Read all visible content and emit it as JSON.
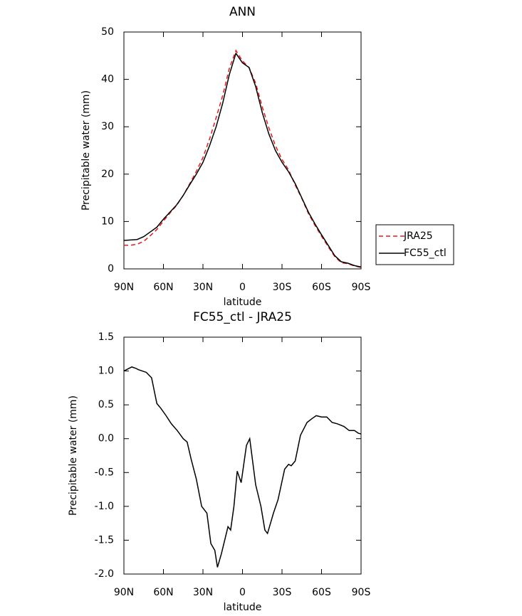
{
  "chart_data": [
    {
      "type": "line",
      "title": "ANN",
      "xlabel": "latitude",
      "ylabel": "Precipitable water (mm)",
      "xlim": [
        90,
        -90
      ],
      "xticks": [
        {
          "value": 90,
          "label": "90N"
        },
        {
          "value": 60,
          "label": "60N"
        },
        {
          "value": 30,
          "label": "30N"
        },
        0,
        {
          "value": -30,
          "label": "30S"
        },
        {
          "value": -60,
          "label": "60S"
        },
        {
          "value": -90,
          "label": "90S"
        }
      ],
      "ylim": [
        0,
        50
      ],
      "yticks": [
        0,
        10,
        20,
        30,
        40,
        50
      ],
      "legend": "outside-right",
      "x": [
        90,
        85,
        80,
        75,
        70,
        65,
        60,
        55,
        50,
        45,
        40,
        35,
        30,
        25,
        20,
        15,
        10,
        5,
        0,
        -5,
        -10,
        -15,
        -20,
        -25,
        -30,
        -35,
        -40,
        -45,
        -50,
        -55,
        -60,
        -65,
        -70,
        -75,
        -80,
        -85,
        -90
      ],
      "series": [
        {
          "name": "JRA25",
          "color": "#e8191c",
          "dashed": true,
          "values": [
            5.0,
            5.0,
            5.2,
            5.8,
            7.0,
            8.3,
            10.1,
            11.8,
            13.4,
            15.5,
            18.0,
            20.6,
            23.5,
            27.4,
            31.9,
            36.6,
            42.3,
            46.1,
            43.9,
            42.5,
            39.2,
            34.2,
            29.8,
            26.0,
            23.1,
            20.9,
            17.7,
            14.9,
            11.7,
            9.2,
            6.9,
            4.7,
            2.6,
            1.3,
            1.1,
            0.6,
            0.3
          ]
        },
        {
          "name": "FC55_ctl",
          "color": "#000000",
          "dashed": false,
          "values": [
            6.0,
            6.1,
            6.2,
            6.8,
            7.8,
            8.8,
            10.5,
            12.0,
            13.5,
            15.5,
            17.8,
            20.0,
            22.5,
            26.0,
            30.0,
            35.0,
            41.0,
            45.5,
            43.5,
            42.5,
            38.5,
            33.0,
            28.5,
            25.0,
            22.5,
            20.5,
            18.0,
            15.0,
            12.0,
            9.5,
            7.2,
            5.0,
            2.8,
            1.5,
            1.2,
            0.7,
            0.4
          ]
        }
      ]
    },
    {
      "type": "line",
      "title": "FC55_ctl - JRA25",
      "xlabel": "latitude",
      "ylabel": "Precipitable water (mm)",
      "xlim": [
        90,
        -90
      ],
      "xticks": [
        {
          "value": 90,
          "label": "90N"
        },
        {
          "value": 60,
          "label": "60N"
        },
        {
          "value": 30,
          "label": "30N"
        },
        0,
        {
          "value": -30,
          "label": "30S"
        },
        {
          "value": -60,
          "label": "60S"
        },
        {
          "value": -90,
          "label": "90S"
        }
      ],
      "ylim": [
        -2.0,
        1.5
      ],
      "yticks": [
        {
          "value": -2.0,
          "label": "-2.0"
        },
        -1.5,
        {
          "value": -1.0,
          "label": "-1.0"
        },
        -0.5,
        {
          "value": 0.0,
          "label": "0.0"
        },
        0.5,
        {
          "value": 1.0,
          "label": "1.0"
        },
        1.5
      ],
      "x": [
        90,
        84,
        81,
        79,
        73,
        69,
        65,
        62,
        58,
        54,
        49.5,
        45,
        42,
        39,
        35,
        31,
        27,
        24,
        21,
        19,
        16,
        11,
        9,
        6.5,
        4,
        1,
        -3,
        -5.5,
        -10,
        -14,
        -17,
        -19,
        -23.5,
        -27,
        -32,
        -35,
        -37,
        -40,
        -44,
        -49,
        -53,
        -56,
        -60,
        -64,
        -68,
        -72,
        -77,
        -81,
        -85,
        -88,
        -90
      ],
      "series": [
        {
          "name": "FC55_ctl - JRA25",
          "color": "#000000",
          "dashed": false,
          "values": [
            1.0,
            1.06,
            1.04,
            1.02,
            0.98,
            0.9,
            0.52,
            0.45,
            0.34,
            0.22,
            0.12,
            0.0,
            -0.05,
            -0.3,
            -0.6,
            -1.0,
            -1.1,
            -1.55,
            -1.65,
            -1.9,
            -1.7,
            -1.3,
            -1.35,
            -1.0,
            -0.48,
            -0.65,
            -0.1,
            0.0,
            -0.68,
            -1.0,
            -1.35,
            -1.4,
            -1.1,
            -0.9,
            -0.45,
            -0.38,
            -0.4,
            -0.33,
            0.05,
            0.24,
            0.3,
            0.34,
            0.32,
            0.32,
            0.24,
            0.22,
            0.18,
            0.12,
            0.12,
            0.08,
            0.07
          ]
        }
      ]
    }
  ]
}
